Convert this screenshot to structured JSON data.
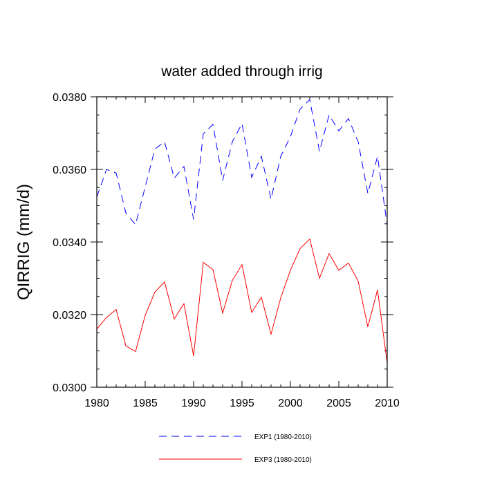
{
  "chart_data": {
    "type": "line",
    "title": "water added through irrig",
    "xlabel": "",
    "ylabel": "QIRRIG  (mm/d)",
    "xlim": [
      1980,
      2010
    ],
    "ylim": [
      0.03,
      0.038
    ],
    "grid": false,
    "legend_position": "bottom",
    "xticks": [
      "1980",
      "1985",
      "1990",
      "1995",
      "2000",
      "2005",
      "2010"
    ],
    "yticks": [
      "0.0300",
      "0.0320",
      "0.0340",
      "0.0360",
      "0.0380"
    ],
    "x": [
      1980,
      1981,
      1982,
      1983,
      1984,
      1985,
      1986,
      1987,
      1988,
      1989,
      1990,
      1991,
      1992,
      1993,
      1994,
      1995,
      1996,
      1997,
      1998,
      1999,
      2000,
      2001,
      2002,
      2003,
      2004,
      2005,
      2006,
      2007,
      2008,
      2009,
      2010
    ],
    "series": [
      {
        "name": "EXP1 (1980-2010)",
        "color": "#0000ff",
        "line_style": "dashed",
        "values": [
          0.03524,
          0.036,
          0.0359,
          0.0348,
          0.03448,
          0.03552,
          0.03656,
          0.03676,
          0.03576,
          0.03608,
          0.03462,
          0.03698,
          0.03724,
          0.0357,
          0.03676,
          0.03726,
          0.03578,
          0.03636,
          0.03518,
          0.03636,
          0.0369,
          0.03766,
          0.03792,
          0.0365,
          0.0375,
          0.03706,
          0.0374,
          0.03676,
          0.03534,
          0.03636,
          0.03446
        ]
      },
      {
        "name": "EXP3 (1980-2010)",
        "color": "#ff0000",
        "line_style": "solid",
        "values": [
          0.0316,
          0.03192,
          0.03214,
          0.03114,
          0.03098,
          0.03198,
          0.03262,
          0.0329,
          0.03188,
          0.0323,
          0.03086,
          0.03344,
          0.03324,
          0.03204,
          0.03294,
          0.03338,
          0.03206,
          0.03248,
          0.03146,
          0.03246,
          0.03322,
          0.03382,
          0.03408,
          0.033,
          0.03368,
          0.03322,
          0.03342,
          0.03292,
          0.03166,
          0.03268,
          0.03066
        ]
      }
    ]
  }
}
